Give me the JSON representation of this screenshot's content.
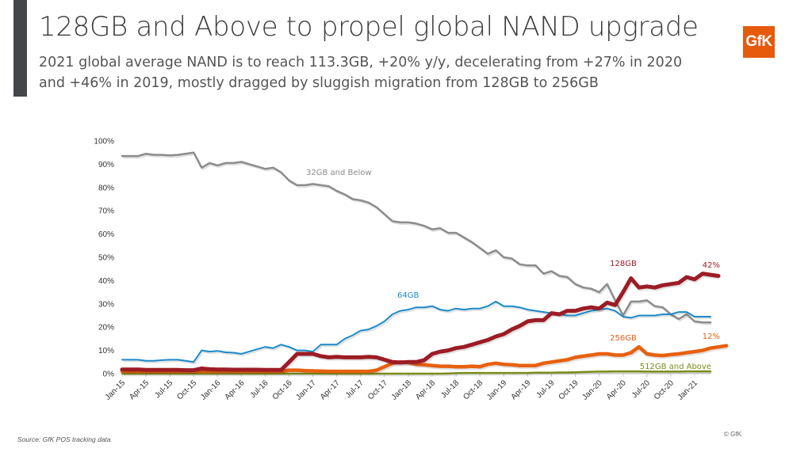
{
  "header": {
    "title": "128GB and Above to propel global NAND upgrade",
    "subtitle_line1": "2021 global average NAND is to reach 113.3GB, +20% y/y, decelerating from +27% in 2020",
    "subtitle_line2": "and +46% in 2019, mostly dragged by sluggish migration from 128GB to 256GB"
  },
  "logo": {
    "text": "GfK",
    "color": "#e55a0b"
  },
  "footer": {
    "source": "Source: GfK POS tracking data",
    "copyright": "© GfK"
  },
  "chart_data": {
    "type": "line",
    "title": "",
    "xlabel": "",
    "ylabel": "",
    "ylim": [
      0,
      100
    ],
    "y_ticks": [
      "0%",
      "10%",
      "20%",
      "30%",
      "40%",
      "50%",
      "60%",
      "70%",
      "80%",
      "90%",
      "100%"
    ],
    "x_tick_labels": [
      "Jan-15",
      "Apr-15",
      "Jul-15",
      "Oct-15",
      "Jan-16",
      "Apr-16",
      "Jul-16",
      "Oct-16",
      "Jan-17",
      "Apr-17",
      "Jul-17",
      "Oct-17",
      "Jan-18",
      "Apr-18",
      "Jul-18",
      "Oct-18",
      "Jan-19",
      "Apr-19",
      "Jul-19",
      "Oct-19",
      "Jan-20",
      "Apr-20",
      "Jul-20",
      "Oct-20",
      "Jan-21"
    ],
    "x_start": "Jan-15",
    "x_frequency": "monthly",
    "grid": false,
    "legend": "inline labels",
    "series": [
      {
        "name": "32GB and Below",
        "label": "32GB and Below",
        "color": "#8c8c8c",
        "values": [
          93.5,
          93.5,
          93.5,
          94.5,
          94,
          94,
          93.8,
          94,
          94.5,
          95,
          88.5,
          90.5,
          89.5,
          90.5,
          90.5,
          91,
          90,
          89,
          88,
          88.5,
          86.5,
          83,
          81,
          81,
          81.5,
          81,
          80.5,
          78.5,
          77,
          75,
          74.5,
          73.5,
          71.5,
          68.5,
          65.5,
          65,
          65,
          64.5,
          63.5,
          62,
          62.5,
          60.5,
          60.5,
          58.5,
          56.5,
          54,
          51.5,
          53,
          50,
          49.5,
          47,
          46.5,
          46.5,
          43,
          44,
          42,
          41.5,
          38.5,
          37,
          36.5,
          35,
          38.5,
          31.5,
          25,
          31,
          31,
          31.5,
          29,
          28.5,
          25.5,
          23.5,
          25.5,
          22.5,
          22,
          22
        ]
      },
      {
        "name": "64GB",
        "label": "64GB",
        "color": "#1a8ac9",
        "values": [
          6,
          6,
          6,
          5.5,
          5.5,
          5.8,
          6,
          6,
          5.5,
          5,
          10,
          9.5,
          9.8,
          9.2,
          9,
          8.5,
          9.5,
          10.5,
          11.5,
          11,
          12.5,
          11.5,
          10,
          10,
          9.5,
          12.5,
          12.5,
          12.5,
          15,
          16.5,
          18.5,
          19,
          20.5,
          22.5,
          25.5,
          27,
          27.5,
          28.5,
          28.5,
          29,
          27.5,
          27,
          28,
          27.5,
          28,
          28,
          29,
          31,
          29,
          29,
          28.5,
          27.5,
          27,
          26.5,
          26,
          25.5,
          25,
          25,
          26,
          27,
          27.5,
          28,
          27,
          24.5,
          24,
          25,
          25,
          25,
          25.5,
          25.5,
          26.5,
          26.5,
          24.5,
          24.5,
          24.5
        ]
      },
      {
        "name": "128GB",
        "label": "128GB",
        "end_label": "42%",
        "color": "#9c1c26",
        "values": [
          1.8,
          1.8,
          1.8,
          1.6,
          1.6,
          1.6,
          1.6,
          1.6,
          1.5,
          1.5,
          2.2,
          1.9,
          1.8,
          1.8,
          1.7,
          1.7,
          1.7,
          1.7,
          1.6,
          1.6,
          1.6,
          5,
          8.5,
          8.5,
          8.5,
          7.5,
          7,
          7.2,
          7,
          7,
          7,
          7.2,
          7,
          6,
          5,
          4.8,
          5,
          5,
          5.8,
          8.5,
          9.5,
          10,
          11,
          11.5,
          12.5,
          13.5,
          14.5,
          16,
          17,
          19,
          20.5,
          22.5,
          23,
          23,
          26,
          25.5,
          27,
          27,
          28,
          28.5,
          28,
          30.5,
          29.5,
          35,
          41,
          37,
          37.5,
          37,
          38,
          38.5,
          39,
          41.5,
          40.5,
          43,
          42.5,
          42
        ]
      },
      {
        "name": "256GB",
        "label": "256GB",
        "end_label": "12%",
        "color": "#e8600e",
        "values": [
          1,
          1,
          1,
          1,
          1,
          1,
          1,
          1,
          1,
          1,
          1,
          1,
          1,
          1,
          1,
          1,
          1,
          1,
          1,
          1,
          1,
          1.5,
          1.5,
          1.3,
          1.2,
          1.1,
          1,
          1,
          1,
          1,
          1,
          1,
          1.5,
          3,
          4.5,
          5,
          4.8,
          4,
          3.8,
          3.5,
          3.2,
          3.2,
          3,
          3,
          3.2,
          3,
          4,
          4.5,
          4,
          3.8,
          3.5,
          3.5,
          3.5,
          4.5,
          5,
          5.5,
          6,
          7,
          7.5,
          8,
          8.5,
          8.5,
          8,
          8,
          9,
          11.5,
          8.5,
          8,
          7.8,
          8.2,
          8.5,
          9,
          9.5,
          10,
          11,
          11.5,
          12
        ]
      },
      {
        "name": "512GB and Above",
        "label": "512GB and Above",
        "color": "#7a8c1a",
        "values": [
          0,
          0,
          0,
          0,
          0,
          0,
          0,
          0,
          0,
          0,
          0,
          0,
          0,
          0,
          0,
          0,
          0,
          0,
          0,
          0,
          0,
          0,
          0,
          0,
          0,
          0,
          0,
          0,
          0,
          0,
          0,
          0,
          0,
          0,
          0,
          0,
          0,
          0,
          0,
          0,
          0,
          0.1,
          0.2,
          0.3,
          0.3,
          0.3,
          0.3,
          0.3,
          0.3,
          0.3,
          0.3,
          0.3,
          0.4,
          0.4,
          0.4,
          0.5,
          0.5,
          0.6,
          0.7,
          0.8,
          0.9,
          0.9,
          1,
          1,
          1,
          1,
          0.9,
          0.9,
          0.9,
          0.9,
          0.9,
          1,
          1,
          1,
          1
        ]
      }
    ]
  }
}
